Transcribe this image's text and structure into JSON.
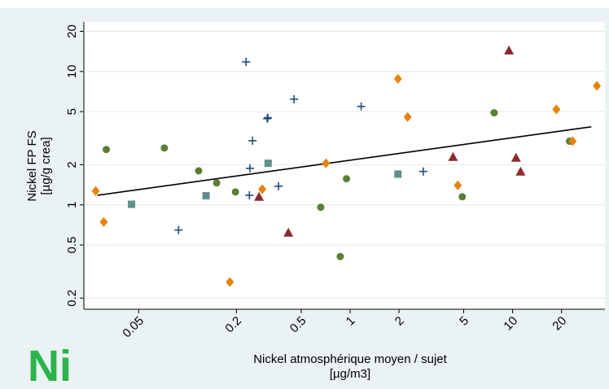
{
  "chart_data": {
    "type": "scatter",
    "xlabel": [
      "Nickel atmosphérique moyen / sujet",
      "[µg/m3]"
    ],
    "ylabel": [
      "Nickel FP FS",
      "[µg/g crea]"
    ],
    "badge": "Ni",
    "xscale": "log",
    "yscale": "log",
    "grid": true,
    "xlim": [
      0.023,
      37
    ],
    "ylim": [
      0.165,
      23.5
    ],
    "xticks": [
      0.05,
      0.2,
      0.5,
      1,
      2,
      5,
      10,
      20
    ],
    "yticks": [
      0.2,
      0.5,
      1,
      2,
      5,
      10,
      20
    ],
    "series": [
      {
        "marker": "circle",
        "color": "#5b7f34",
        "x": [
          0.0316,
          0.072,
          0.117,
          0.151,
          0.197,
          0.66,
          0.87,
          0.95,
          4.9,
          7.7,
          22.4
        ],
        "values": [
          2.6,
          2.67,
          1.8,
          1.46,
          1.25,
          0.96,
          0.41,
          1.57,
          1.15,
          4.9,
          3.0
        ]
      },
      {
        "marker": "diamond",
        "color": "#e8820c",
        "x": [
          0.0272,
          0.0305,
          0.182,
          0.288,
          0.71,
          1.97,
          2.26,
          4.6,
          18.6,
          23.4,
          33
        ],
        "values": [
          1.27,
          0.745,
          0.264,
          1.31,
          2.05,
          8.8,
          4.56,
          1.4,
          5.2,
          3.0,
          7.8
        ]
      },
      {
        "marker": "plus",
        "color": "#1f4e79",
        "x": [
          0.229,
          0.088,
          0.251,
          0.242,
          0.24,
          0.309,
          0.312,
          0.363,
          0.452,
          1.17,
          2.82
        ],
        "values": [
          11.8,
          0.647,
          3.03,
          1.88,
          1.18,
          4.43,
          4.5,
          1.38,
          6.2,
          5.47,
          1.78
        ]
      },
      {
        "marker": "square",
        "color": "#5f8f8c",
        "x": [
          0.0452,
          0.13,
          0.313,
          1.97
        ],
        "values": [
          1.01,
          1.17,
          2.05,
          1.7
        ]
      },
      {
        "marker": "triangle",
        "color": "#8b2a2e",
        "x": [
          0.275,
          0.417,
          4.3,
          9.5,
          10.5,
          11.2
        ],
        "values": [
          1.15,
          0.62,
          2.29,
          14.4,
          2.26,
          1.78
        ]
      }
    ],
    "fit_line": {
      "color": "#000000",
      "x": [
        0.0279,
        30.5
      ],
      "values": [
        1.18,
        3.85
      ]
    }
  }
}
